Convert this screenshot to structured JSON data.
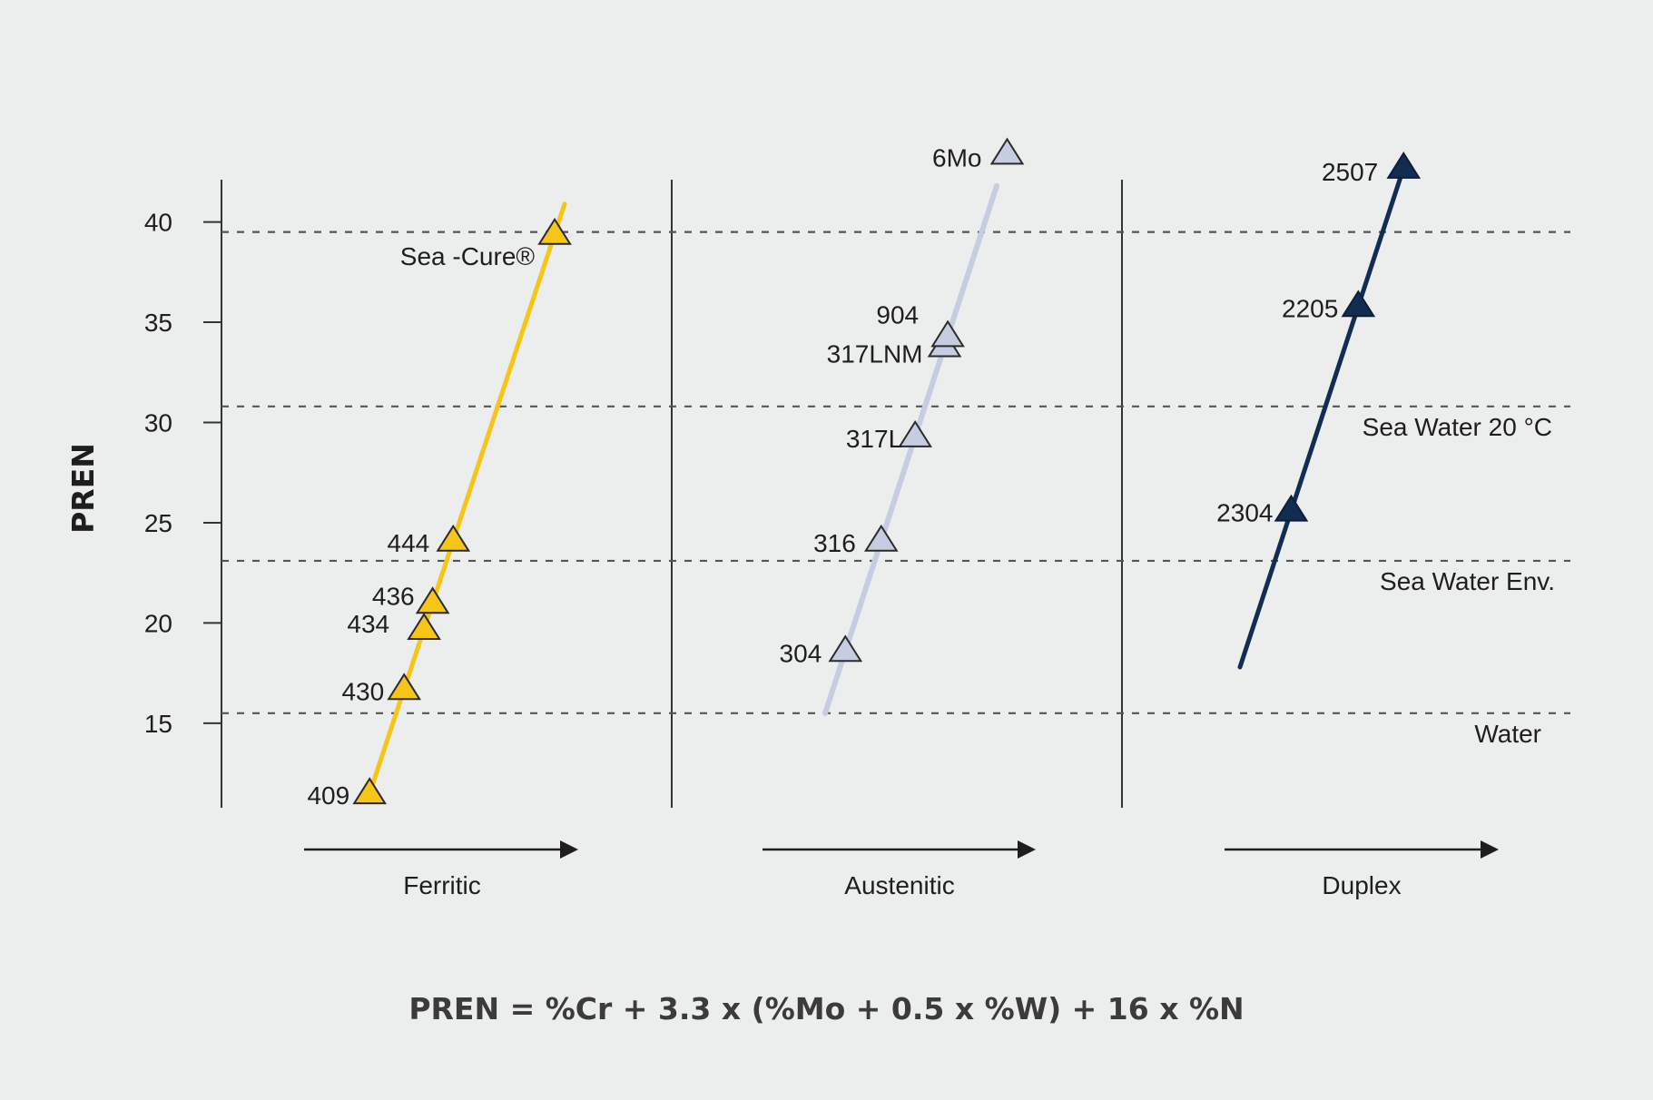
{
  "chart_data": {
    "type": "scatter",
    "title": "",
    "ylabel": "PREN",
    "xlabel": "",
    "ylim": [
      11,
      44
    ],
    "yticks": [
      "15",
      "20",
      "25",
      "30",
      "35",
      "40"
    ],
    "grid": false,
    "categories": [
      "Ferritic",
      "Austenitic",
      "Duplex"
    ],
    "thresholds": [
      {
        "label": "",
        "value": 39.5
      },
      {
        "label": "Sea Water 20 °C",
        "value": 30.8
      },
      {
        "label": "Sea Water Env.",
        "value": 23.1
      },
      {
        "label": "Water",
        "value": 15.5
      }
    ],
    "series": [
      {
        "category": "Ferritic",
        "color": "#f5c518",
        "trend": [
          11.2,
          40.9
        ],
        "points": [
          {
            "label": "409",
            "pren": 11.5
          },
          {
            "label": "430",
            "pren": 16.7
          },
          {
            "label": "434",
            "pren": 19.7
          },
          {
            "label": "436",
            "pren": 21.0
          },
          {
            "label": "444",
            "pren": 24.1
          },
          {
            "label": "Sea -Cure®",
            "pren": 39.4
          }
        ]
      },
      {
        "category": "Austenitic",
        "color": "#c6cde0",
        "trend": [
          15.5,
          41.8
        ],
        "points": [
          {
            "label": "304",
            "pren": 18.6
          },
          {
            "label": "316",
            "pren": 24.1
          },
          {
            "label": "317L",
            "pren": 29.3
          },
          {
            "label": "317LNM",
            "pren": 33.8
          },
          {
            "label": "904",
            "pren": 34.3
          },
          {
            "label": "6Mo",
            "pren": 43.4
          }
        ]
      },
      {
        "category": "Duplex",
        "color": "#132d52",
        "trend": [
          17.8,
          42.8
        ],
        "points": [
          {
            "label": "2304",
            "pren": 25.6
          },
          {
            "label": "2205",
            "pren": 35.8
          },
          {
            "label": "2507",
            "pren": 42.7
          }
        ]
      }
    ]
  },
  "formula": "PREN = %Cr + 3.3 x (%Mo + 0.5 x %W) + 16 x %N"
}
